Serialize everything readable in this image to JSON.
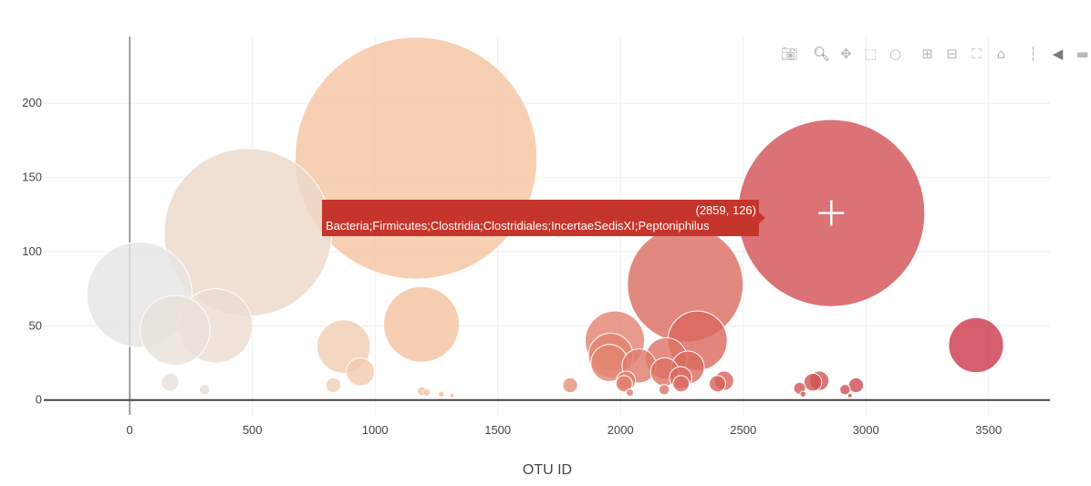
{
  "chart_data": {
    "type": "scatter",
    "xlabel": "OTU ID",
    "ylabel": "",
    "xlim": [
      -350,
      3750
    ],
    "ylim": [
      -10,
      245
    ],
    "xticks": [
      0,
      500,
      1000,
      1500,
      2000,
      2500,
      3000,
      3500
    ],
    "yticks": [
      0,
      50,
      100,
      150,
      200
    ],
    "grid": true,
    "colorscale": [
      "#e6e6e6",
      "#f5c4a0",
      "#d9655b",
      "#c9344a"
    ],
    "points": [
      {
        "x": 40,
        "y": 71
      },
      {
        "x": 185,
        "y": 47
      },
      {
        "x": 350,
        "y": 50
      },
      {
        "x": 482,
        "y": 113
      },
      {
        "x": 1167,
        "y": 163
      },
      {
        "x": 1189,
        "y": 51
      },
      {
        "x": 872,
        "y": 36
      },
      {
        "x": 940,
        "y": 19
      },
      {
        "x": 165,
        "y": 12
      },
      {
        "x": 305,
        "y": 7
      },
      {
        "x": 830,
        "y": 10
      },
      {
        "x": 1190,
        "y": 6
      },
      {
        "x": 1210,
        "y": 5
      },
      {
        "x": 1270,
        "y": 4
      },
      {
        "x": 1314,
        "y": 3
      },
      {
        "x": 1795,
        "y": 10
      },
      {
        "x": 1977,
        "y": 40
      },
      {
        "x": 1960,
        "y": 30
      },
      {
        "x": 1955,
        "y": 25
      },
      {
        "x": 2076,
        "y": 23
      },
      {
        "x": 2022,
        "y": 13
      },
      {
        "x": 2015,
        "y": 11
      },
      {
        "x": 2038,
        "y": 5
      },
      {
        "x": 2186,
        "y": 28
      },
      {
        "x": 2180,
        "y": 19
      },
      {
        "x": 2264,
        "y": 78
      },
      {
        "x": 2314,
        "y": 40
      },
      {
        "x": 2275,
        "y": 22
      },
      {
        "x": 2245,
        "y": 15
      },
      {
        "x": 2247,
        "y": 11
      },
      {
        "x": 2178,
        "y": 7
      },
      {
        "x": 2422,
        "y": 13
      },
      {
        "x": 2395,
        "y": 11
      },
      {
        "x": 2859,
        "y": 126
      },
      {
        "x": 2810,
        "y": 13
      },
      {
        "x": 2784,
        "y": 12
      },
      {
        "x": 2730,
        "y": 8
      },
      {
        "x": 2744,
        "y": 4
      },
      {
        "x": 2960,
        "y": 10
      },
      {
        "x": 2915,
        "y": 7
      },
      {
        "x": 2935,
        "y": 3
      },
      {
        "x": 3449,
        "y": 37
      }
    ]
  },
  "tooltip": {
    "value": "(2859, 126)",
    "text": "Bacteria;Firmicutes;Clostridia;Clostridiales;IncertaeSedisXI;Peptoniphilus"
  },
  "modebar": {
    "buttons": [
      "camera-icon",
      "zoom-icon",
      "pan-icon",
      "box-select-icon",
      "lasso-icon",
      "zoom-in-icon",
      "zoom-out-icon",
      "autoscale-icon",
      "reset-axes-icon",
      "spike-lines-icon",
      "hover-closest-icon",
      "hover-compare-icon"
    ],
    "active_color": "#7a7a7a",
    "inactive_color": "#b9b9b9"
  }
}
